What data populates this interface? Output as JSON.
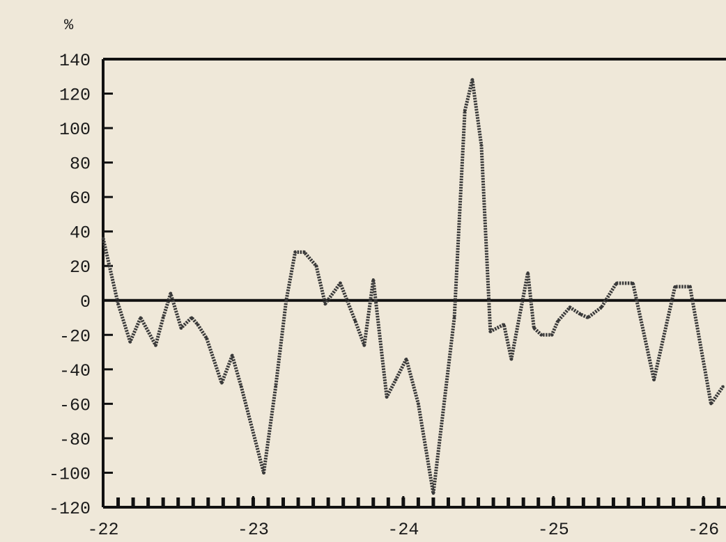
{
  "chart_data": {
    "type": "line",
    "title": "",
    "xlabel": "",
    "ylabel": "%",
    "xlim": [
      -22,
      -26.15
    ],
    "ylim": [
      -120,
      140
    ],
    "yticks": [
      140,
      120,
      100,
      80,
      60,
      40,
      20,
      0,
      -20,
      -40,
      -60,
      -80,
      -100,
      -120
    ],
    "xticks": [
      -22,
      -23,
      -24,
      -25,
      -26
    ],
    "grid": false,
    "colors": {
      "line": "#3a3a3a",
      "axis": "#111111",
      "background": "#efe8d9"
    },
    "series": [
      {
        "x": [
          -22.0,
          -22.1,
          -22.18,
          -22.25,
          -22.35,
          -22.4,
          -22.45,
          -22.52,
          -22.59,
          -22.63,
          -22.69,
          -22.79,
          -22.86,
          -22.92,
          -23.07,
          -23.15,
          -23.22,
          -23.28,
          -23.34,
          -23.42,
          -23.48,
          -23.58,
          -23.68,
          -23.74,
          -23.8,
          -23.89,
          -23.95,
          -24.02,
          -24.1,
          -24.2,
          -24.34,
          -24.41,
          -24.46,
          -24.52,
          -24.58,
          -24.67,
          -24.72,
          -24.83,
          -24.87,
          -24.92,
          -24.99,
          -25.03,
          -25.11,
          -25.18,
          -25.23,
          -25.32,
          -25.42,
          -25.53,
          -25.67,
          -25.81,
          -25.91,
          -26.05,
          -26.13
        ],
        "y": [
          36,
          -2,
          -24,
          -10,
          -26,
          -10,
          4,
          -16,
          -10,
          -14,
          -22,
          -48,
          -32,
          -50,
          -100,
          -50,
          0,
          28,
          28,
          20,
          -2,
          10,
          -12,
          -26,
          12,
          -56,
          -46,
          -34,
          -60,
          -112,
          -10,
          110,
          128,
          90,
          -18,
          -14,
          -34,
          16,
          -16,
          -20,
          -20,
          -12,
          -4,
          -8,
          -10,
          -4,
          10,
          10,
          -46,
          8,
          8,
          -60,
          -50
        ]
      }
    ]
  }
}
